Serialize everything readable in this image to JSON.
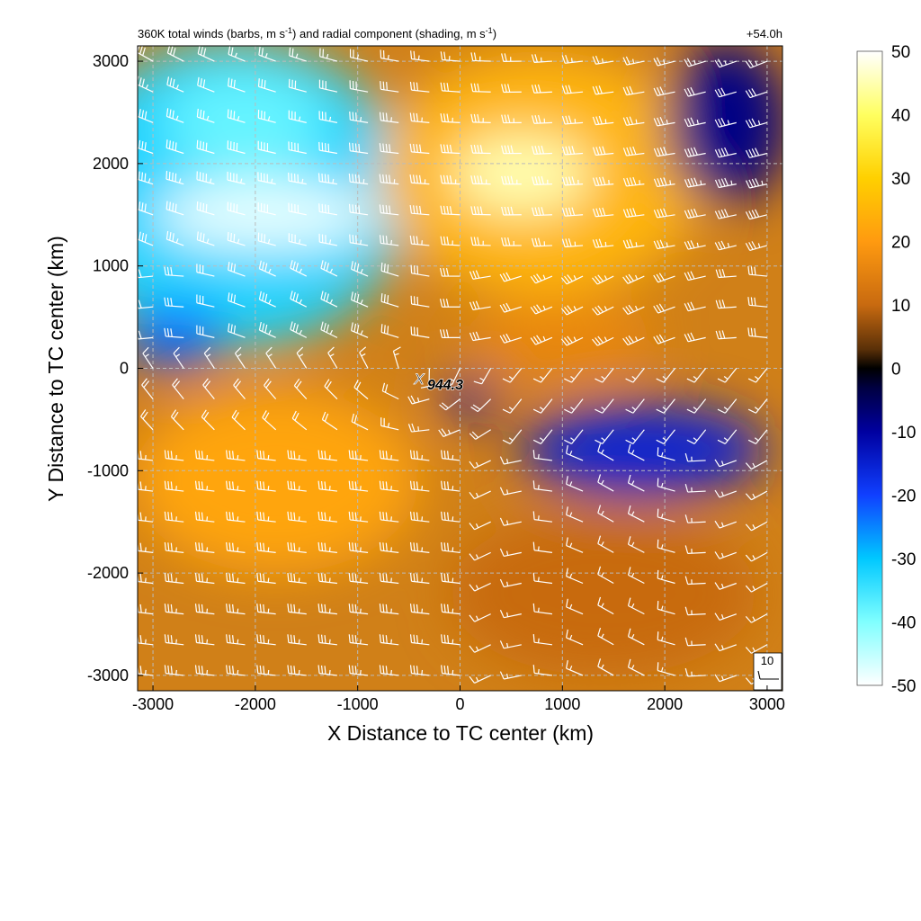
{
  "chart_data": {
    "type": "heatmap",
    "title_parts": {
      "a": "360K total winds (barbs, m s",
      "sup1": "-1",
      "b": ") and radial component (shading, m s",
      "sup2": "-1",
      "c": ")"
    },
    "time_label": "+54.0h",
    "xlabel": "X Distance to TC center (km)",
    "ylabel": "Y Distance to TC center (km)",
    "xlim": [
      -3150,
      3150
    ],
    "ylim": [
      -3150,
      3150
    ],
    "x_ticks": [
      -3000,
      -2000,
      -1000,
      0,
      1000,
      2000,
      3000
    ],
    "y_ticks": [
      -3000,
      -2000,
      -1000,
      0,
      1000,
      2000,
      3000
    ],
    "x_tick_labels": [
      "-3000",
      "-2000",
      "-1000",
      "0",
      "1000",
      "2000",
      "3000"
    ],
    "y_tick_labels": [
      "-3000",
      "-2000",
      "-1000",
      "0",
      "1000",
      "2000",
      "3000"
    ],
    "grid": true,
    "colorbar": {
      "range": [
        -50,
        50
      ],
      "ticks": [
        50,
        40,
        30,
        20,
        10,
        0,
        -10,
        -20,
        -30,
        -40,
        -50
      ],
      "tick_labels": [
        "50",
        "40",
        "30",
        "20",
        "10",
        "0",
        "-10",
        "-20",
        "-30",
        "-40",
        "-50"
      ],
      "stops": [
        {
          "v": 50,
          "c": "#ffffff"
        },
        {
          "v": 40,
          "c": "#ffff60"
        },
        {
          "v": 30,
          "c": "#ffd000"
        },
        {
          "v": 20,
          "c": "#ff9a10"
        },
        {
          "v": 10,
          "c": "#c86a10"
        },
        {
          "v": 3,
          "c": "#5a3008"
        },
        {
          "v": 0,
          "c": "#000000"
        },
        {
          "v": -3,
          "c": "#000040"
        },
        {
          "v": -10,
          "c": "#0000a0"
        },
        {
          "v": -20,
          "c": "#1040ff"
        },
        {
          "v": -30,
          "c": "#00c8ff"
        },
        {
          "v": -40,
          "c": "#80ffff"
        },
        {
          "v": -50,
          "c": "#ffffff"
        }
      ]
    },
    "regions": [
      {
        "cx": -2200,
        "cy": 1700,
        "rx": 1700,
        "ry": 1500,
        "value": -32
      },
      {
        "cx": -1900,
        "cy": 1500,
        "rx": 1100,
        "ry": 350,
        "value": -48
      },
      {
        "cx": -2100,
        "cy": 2400,
        "rx": 800,
        "ry": 500,
        "value": -38
      },
      {
        "cx": -2800,
        "cy": 300,
        "rx": 500,
        "ry": 300,
        "value": -22
      },
      {
        "cx": 800,
        "cy": 1900,
        "rx": 1600,
        "ry": 1200,
        "value": 25
      },
      {
        "cx": 600,
        "cy": 1900,
        "rx": 700,
        "ry": 400,
        "value": 45
      },
      {
        "cx": 2600,
        "cy": 2400,
        "rx": 600,
        "ry": 800,
        "value": -8
      },
      {
        "cx": -1800,
        "cy": -1100,
        "rx": 1400,
        "ry": 900,
        "value": 22
      },
      {
        "cx": 1800,
        "cy": -800,
        "rx": 1200,
        "ry": 450,
        "value": -15
      },
      {
        "cx": 1400,
        "cy": -2200,
        "rx": 1500,
        "ry": 800,
        "value": 10
      },
      {
        "cx": 100,
        "cy": -300,
        "rx": 250,
        "ry": 200,
        "value": -12
      },
      {
        "cx": 1000,
        "cy": 300,
        "rx": 900,
        "ry": 400,
        "value": 16
      }
    ],
    "center_marker": {
      "symbol": "X",
      "label": "944.3",
      "x": -400,
      "y": -100
    },
    "wind_barbs": {
      "spacing_km": 300,
      "reference_label": "10",
      "reference_speed": 10
    }
  }
}
